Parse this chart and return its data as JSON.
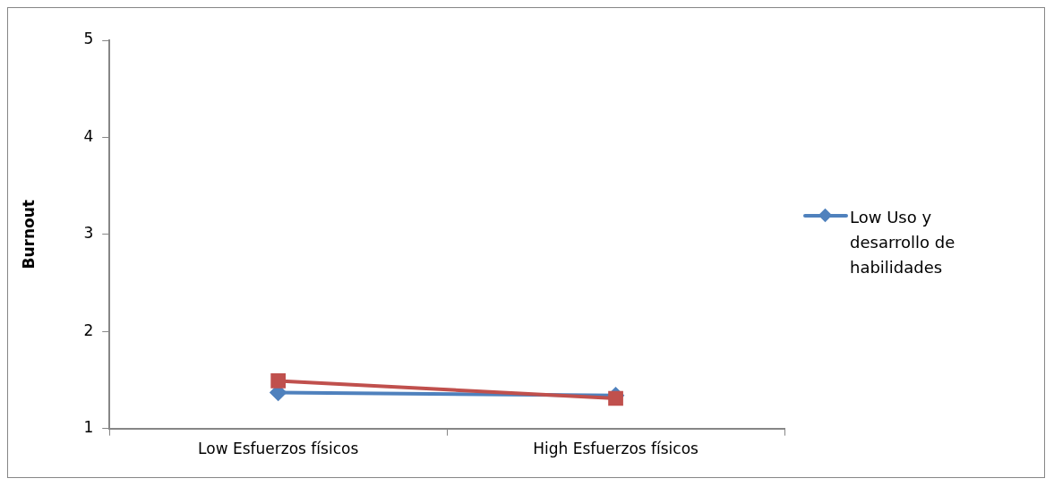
{
  "chart_data": {
    "type": "line",
    "ylabel": "Burnout",
    "categories": [
      "Low Esfuerzos físicos",
      "High Esfuerzos físicos"
    ],
    "series": [
      {
        "name": "Low Uso y desarrollo de habilidades",
        "color": "#4f81bd",
        "values": [
          1.37,
          1.34
        ],
        "marker": "diamond"
      },
      {
        "color": "#c0504d",
        "values": [
          1.49,
          1.31
        ],
        "marker": "square"
      }
    ],
    "ylim": [
      1,
      5
    ],
    "yticks": [
      1,
      2,
      3,
      4,
      5
    ],
    "grid": false,
    "legend": "right",
    "line_style": "solid"
  }
}
